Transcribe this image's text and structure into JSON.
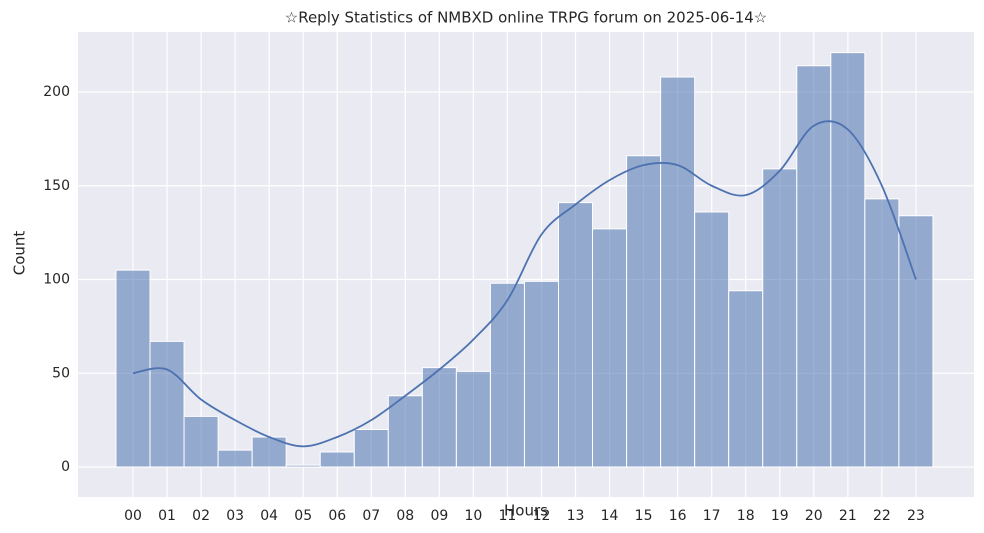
{
  "chart_data": {
    "type": "histogram",
    "title": "☆Reply Statistics of NMBXD online TRPG forum on 2025-06-14☆",
    "x_label": "Hours",
    "y_label": "Count",
    "categories": [
      "00",
      "01",
      "02",
      "03",
      "04",
      "05",
      "06",
      "07",
      "08",
      "09",
      "10",
      "11",
      "12",
      "13",
      "14",
      "15",
      "16",
      "17",
      "18",
      "19",
      "20",
      "21",
      "22",
      "23"
    ],
    "values": [
      105,
      67,
      27,
      9,
      16,
      1,
      8,
      20,
      38,
      53,
      51,
      98,
      99,
      141,
      127,
      166,
      208,
      136,
      94,
      159,
      214,
      221,
      143,
      134
    ],
    "color": "#4c72b0",
    "kde": [
      50,
      52,
      36,
      25,
      16,
      11,
      16,
      25,
      38,
      52,
      68,
      89,
      124,
      140,
      153,
      161,
      161,
      150,
      145,
      158,
      182,
      180,
      150,
      100
    ],
    "ylim": [
      -16,
      232
    ],
    "yticks": [
      0,
      50,
      100,
      150,
      200
    ],
    "grid": true
  }
}
